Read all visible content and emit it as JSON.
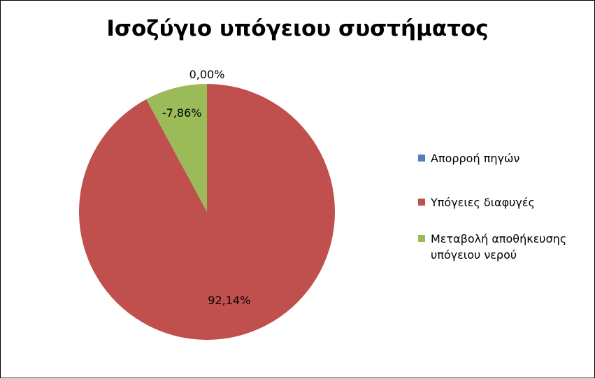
{
  "chart_data": {
    "type": "pie",
    "title": "Ισοζύγιο υπόγειου συστήματος",
    "slices": [
      {
        "label": "Απορροή πηγών",
        "value": 0.0,
        "data_label": "0,00%",
        "color": "#4F81BD"
      },
      {
        "label": "Υπόγειες διαφυγές",
        "value": 92.14,
        "data_label": "92,14%",
        "color": "#C0504D"
      },
      {
        "label": "Μεταβολή αποθήκευσης υπόγειου νερού",
        "value": 7.86,
        "data_label": "-7,86%",
        "color": "#9BBB59"
      }
    ],
    "legend_position": "right"
  }
}
